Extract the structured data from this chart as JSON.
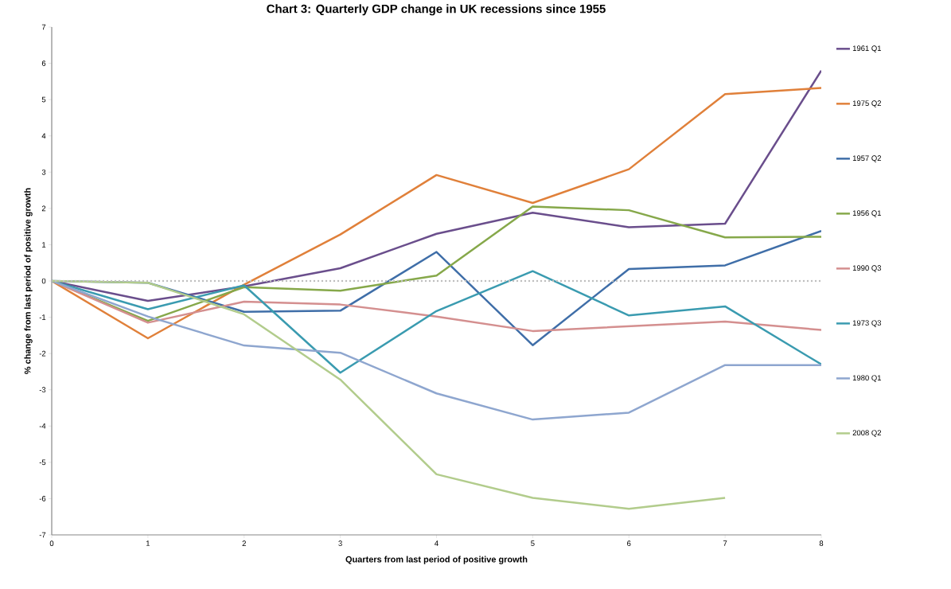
{
  "chart_data": {
    "type": "line",
    "title": "Chart 3: Quarterly GDP change in UK recessions since 1955",
    "xlabel": "Quarters from last period of positive growth",
    "ylabel": "% change from last period of positive growth",
    "x": [
      0,
      1,
      2,
      3,
      4,
      5,
      6,
      7,
      8
    ],
    "series": [
      {
        "name": "1961 Q1",
        "color": "#6a4e8c",
        "values": [
          0,
          -0.55,
          -0.15,
          0.35,
          1.3,
          1.88,
          1.48,
          1.58,
          5.8
        ]
      },
      {
        "name": "1975 Q2",
        "color": "#e0803a",
        "values": [
          0,
          -1.58,
          -0.1,
          1.28,
          2.92,
          2.15,
          3.08,
          5.15,
          5.32
        ]
      },
      {
        "name": "1957 Q2",
        "color": "#3f6ea8",
        "values": [
          0,
          -0.05,
          -0.85,
          -0.82,
          0.8,
          -1.77,
          0.33,
          0.43,
          1.38
        ]
      },
      {
        "name": "1956 Q1",
        "color": "#86a84a",
        "values": [
          0,
          -1.1,
          -0.17,
          -0.27,
          0.15,
          2.05,
          1.95,
          1.2,
          1.22
        ]
      },
      {
        "name": "1990 Q3",
        "color": "#d48f8f",
        "values": [
          0,
          -1.15,
          -0.57,
          -0.65,
          -0.98,
          -1.38,
          -1.25,
          -1.12,
          -1.35
        ]
      },
      {
        "name": "1973 Q3",
        "color": "#3a9bb0",
        "values": [
          0,
          -0.78,
          -0.12,
          -2.53,
          -0.83,
          0.27,
          -0.95,
          -0.7,
          -2.3
        ]
      },
      {
        "name": "1980 Q1",
        "color": "#8ea6cf",
        "values": [
          0,
          -0.98,
          -1.78,
          -1.98,
          -3.1,
          -3.82,
          -3.63,
          -2.32,
          -2.32
        ]
      },
      {
        "name": "2008 Q2",
        "color": "#b2cc8c",
        "values": [
          0,
          -0.05,
          -0.92,
          -2.72,
          -5.33,
          -5.98,
          -6.28,
          -5.98,
          null
        ]
      }
    ],
    "xlim": [
      0,
      8
    ],
    "xticks": [
      0,
      1,
      2,
      3,
      4,
      5,
      6,
      7,
      8
    ],
    "ylim": [
      -7,
      7
    ],
    "yticks": [
      -7,
      -6,
      -5,
      -4,
      -3,
      -2,
      -1,
      0,
      1,
      2,
      3,
      4,
      5,
      6,
      7
    ],
    "ref_lines": [
      {
        "axis": "y",
        "value": 0,
        "color": "#bfbfbf",
        "line_style": "dotted"
      }
    ],
    "grid": false,
    "legend": "right",
    "marker": "none",
    "line_style": "solid"
  }
}
